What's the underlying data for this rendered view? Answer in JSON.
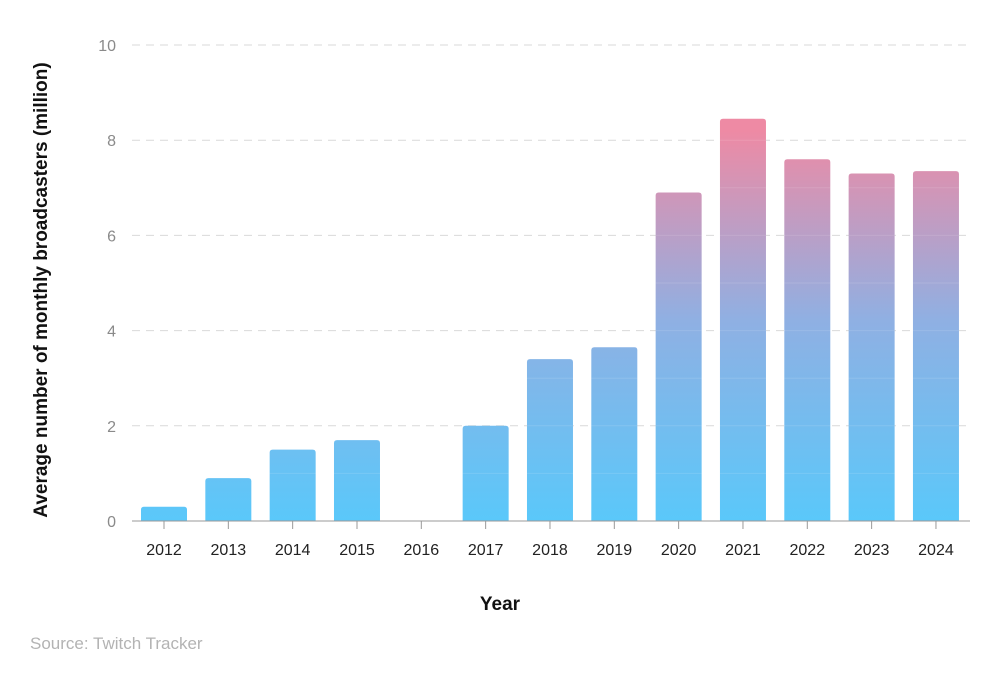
{
  "chart_data": {
    "type": "bar",
    "title": "",
    "xlabel": "Year",
    "ylabel": "Average number of monthly broadcasters (million)",
    "categories": [
      "2012",
      "2013",
      "2014",
      "2015",
      "2016",
      "2017",
      "2018",
      "2019",
      "2020",
      "2021",
      "2022",
      "2023",
      "2024"
    ],
    "values": [
      0.3,
      0.9,
      1.5,
      1.7,
      0,
      2.0,
      3.4,
      3.65,
      6.9,
      8.45,
      7.6,
      7.3,
      7.35
    ],
    "ylim": [
      0,
      10
    ],
    "yticks": [
      0,
      2,
      4,
      6,
      8,
      10
    ],
    "grid": true,
    "legend": "none"
  },
  "colors": {
    "gradient_bottom": "#5ac8fa",
    "gradient_top": "#ee8aa4",
    "band_light": "#ffffff",
    "grid": "#d9d9d9",
    "axis": "#999999"
  },
  "source": "Source: Twitch Tracker"
}
